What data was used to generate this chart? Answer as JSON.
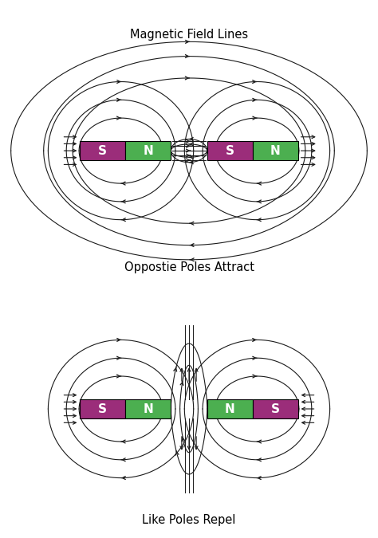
{
  "title1": "Magnetic Field Lines",
  "title2": "Oppostie Poles Attract",
  "title3": "Like Poles Repel",
  "bg_color": "#ffffff",
  "purple": "#9b2d7a",
  "green": "#4caf50",
  "line_color": "#1a1a1a",
  "label_color": "#ffffff",
  "fig_width": 4.74,
  "fig_height": 6.75,
  "dpi": 100
}
